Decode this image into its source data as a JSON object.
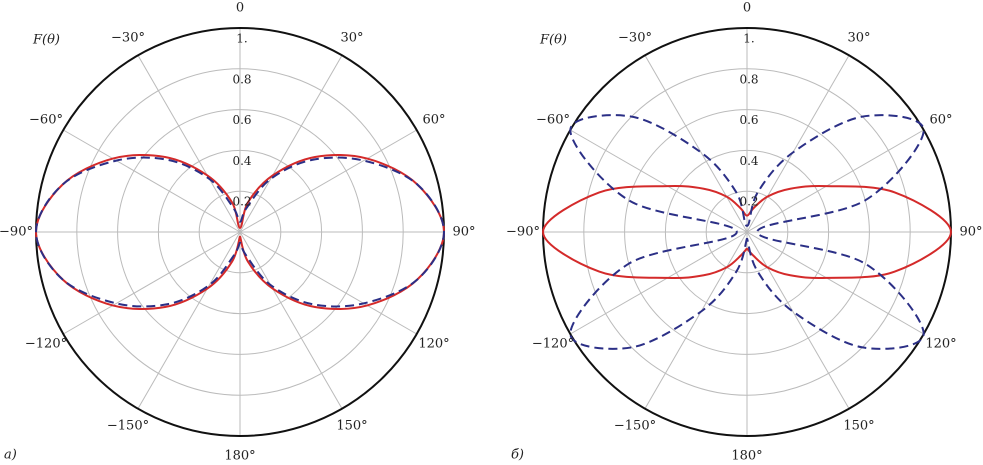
{
  "chart_data": [
    {
      "type": "polar",
      "label": "а)",
      "radial_label": "F(θ)",
      "rlim": [
        0,
        1
      ],
      "rticks": [
        0.2,
        0.4,
        0.6,
        0.8,
        {
          "value": 1,
          "label": "1."
        }
      ],
      "thetaticks": [
        {
          "value": -150,
          "label": "−150°"
        },
        {
          "value": -120,
          "label": "−120°"
        },
        {
          "value": -90,
          "label": "−90°"
        },
        {
          "value": -60,
          "label": "−60°"
        },
        {
          "value": -30,
          "label": "−30°"
        },
        0,
        {
          "value": 30,
          "label": "30°"
        },
        {
          "value": 60,
          "label": "60°"
        },
        {
          "value": 90,
          "label": "90°"
        },
        {
          "value": 120,
          "label": "120°"
        },
        {
          "value": 150,
          "label": "150°"
        },
        {
          "value": 180,
          "label": "180°"
        }
      ],
      "grid": true,
      "theta": [
        -180,
        -165,
        -150,
        -135,
        -120,
        -105,
        -90,
        -75,
        -60,
        -45,
        -30,
        -15,
        0,
        15,
        30,
        45,
        60,
        75,
        90,
        105,
        120,
        135,
        150,
        165,
        180
      ],
      "series": [
        {
          "color": "#d42a2a",
          "dash": false,
          "values": [
            0.02,
            0.15,
            0.32,
            0.52,
            0.72,
            0.9,
            1.0,
            0.9,
            0.72,
            0.52,
            0.32,
            0.15,
            0.02,
            0.15,
            0.32,
            0.52,
            0.72,
            0.9,
            1.0,
            0.9,
            0.72,
            0.52,
            0.32,
            0.15,
            0.02
          ]
        },
        {
          "color": "#2b2f86",
          "dash": true,
          "values": [
            0.05,
            0.12,
            0.3,
            0.5,
            0.7,
            0.9,
            1.0,
            0.9,
            0.7,
            0.5,
            0.3,
            0.12,
            0.05,
            0.12,
            0.3,
            0.5,
            0.7,
            0.9,
            1.0,
            0.9,
            0.7,
            0.5,
            0.3,
            0.12,
            0.05
          ]
        }
      ]
    },
    {
      "type": "polar",
      "label": "б)",
      "radial_label": "F(θ)",
      "rlim": [
        0,
        1
      ],
      "rticks": [
        0.2,
        0.4,
        0.6,
        0.8,
        {
          "value": 1,
          "label": "1."
        }
      ],
      "thetaticks": [
        {
          "value": -150,
          "label": "−150°"
        },
        {
          "value": -120,
          "label": "−120°"
        },
        {
          "value": -90,
          "label": "−90°"
        },
        {
          "value": -60,
          "label": "−60°"
        },
        {
          "value": -30,
          "label": "−30°"
        },
        0,
        {
          "value": 30,
          "label": "30°"
        },
        {
          "value": 60,
          "label": "60°"
        },
        {
          "value": 90,
          "label": "90°"
        },
        {
          "value": 120,
          "label": "120°"
        },
        {
          "value": 150,
          "label": "150°"
        },
        {
          "value": 180,
          "label": "180°"
        }
      ],
      "grid": true,
      "theta": [
        -180,
        -165,
        -150,
        -135,
        -120,
        -105,
        -90,
        -75,
        -60,
        -45,
        -30,
        -15,
        0,
        15,
        30,
        45,
        60,
        75,
        90,
        105,
        120,
        135,
        150,
        165,
        180
      ],
      "series": [
        {
          "color": "#d42a2a",
          "dash": false,
          "values": [
            0.08,
            0.12,
            0.2,
            0.3,
            0.45,
            0.75,
            1.0,
            0.75,
            0.45,
            0.3,
            0.2,
            0.12,
            0.08,
            0.12,
            0.2,
            0.3,
            0.45,
            0.75,
            1.0,
            0.75,
            0.45,
            0.3,
            0.2,
            0.12,
            0.08
          ]
        },
        {
          "color": "#2b2f86",
          "dash": true,
          "values": [
            0.03,
            0.2,
            0.45,
            0.8,
            1.0,
            0.6,
            0.05,
            0.6,
            1.0,
            0.8,
            0.45,
            0.2,
            0.03,
            0.2,
            0.45,
            0.8,
            1.0,
            0.6,
            0.05,
            0.6,
            1.0,
            0.8,
            0.45,
            0.2,
            0.03
          ]
        }
      ]
    }
  ]
}
